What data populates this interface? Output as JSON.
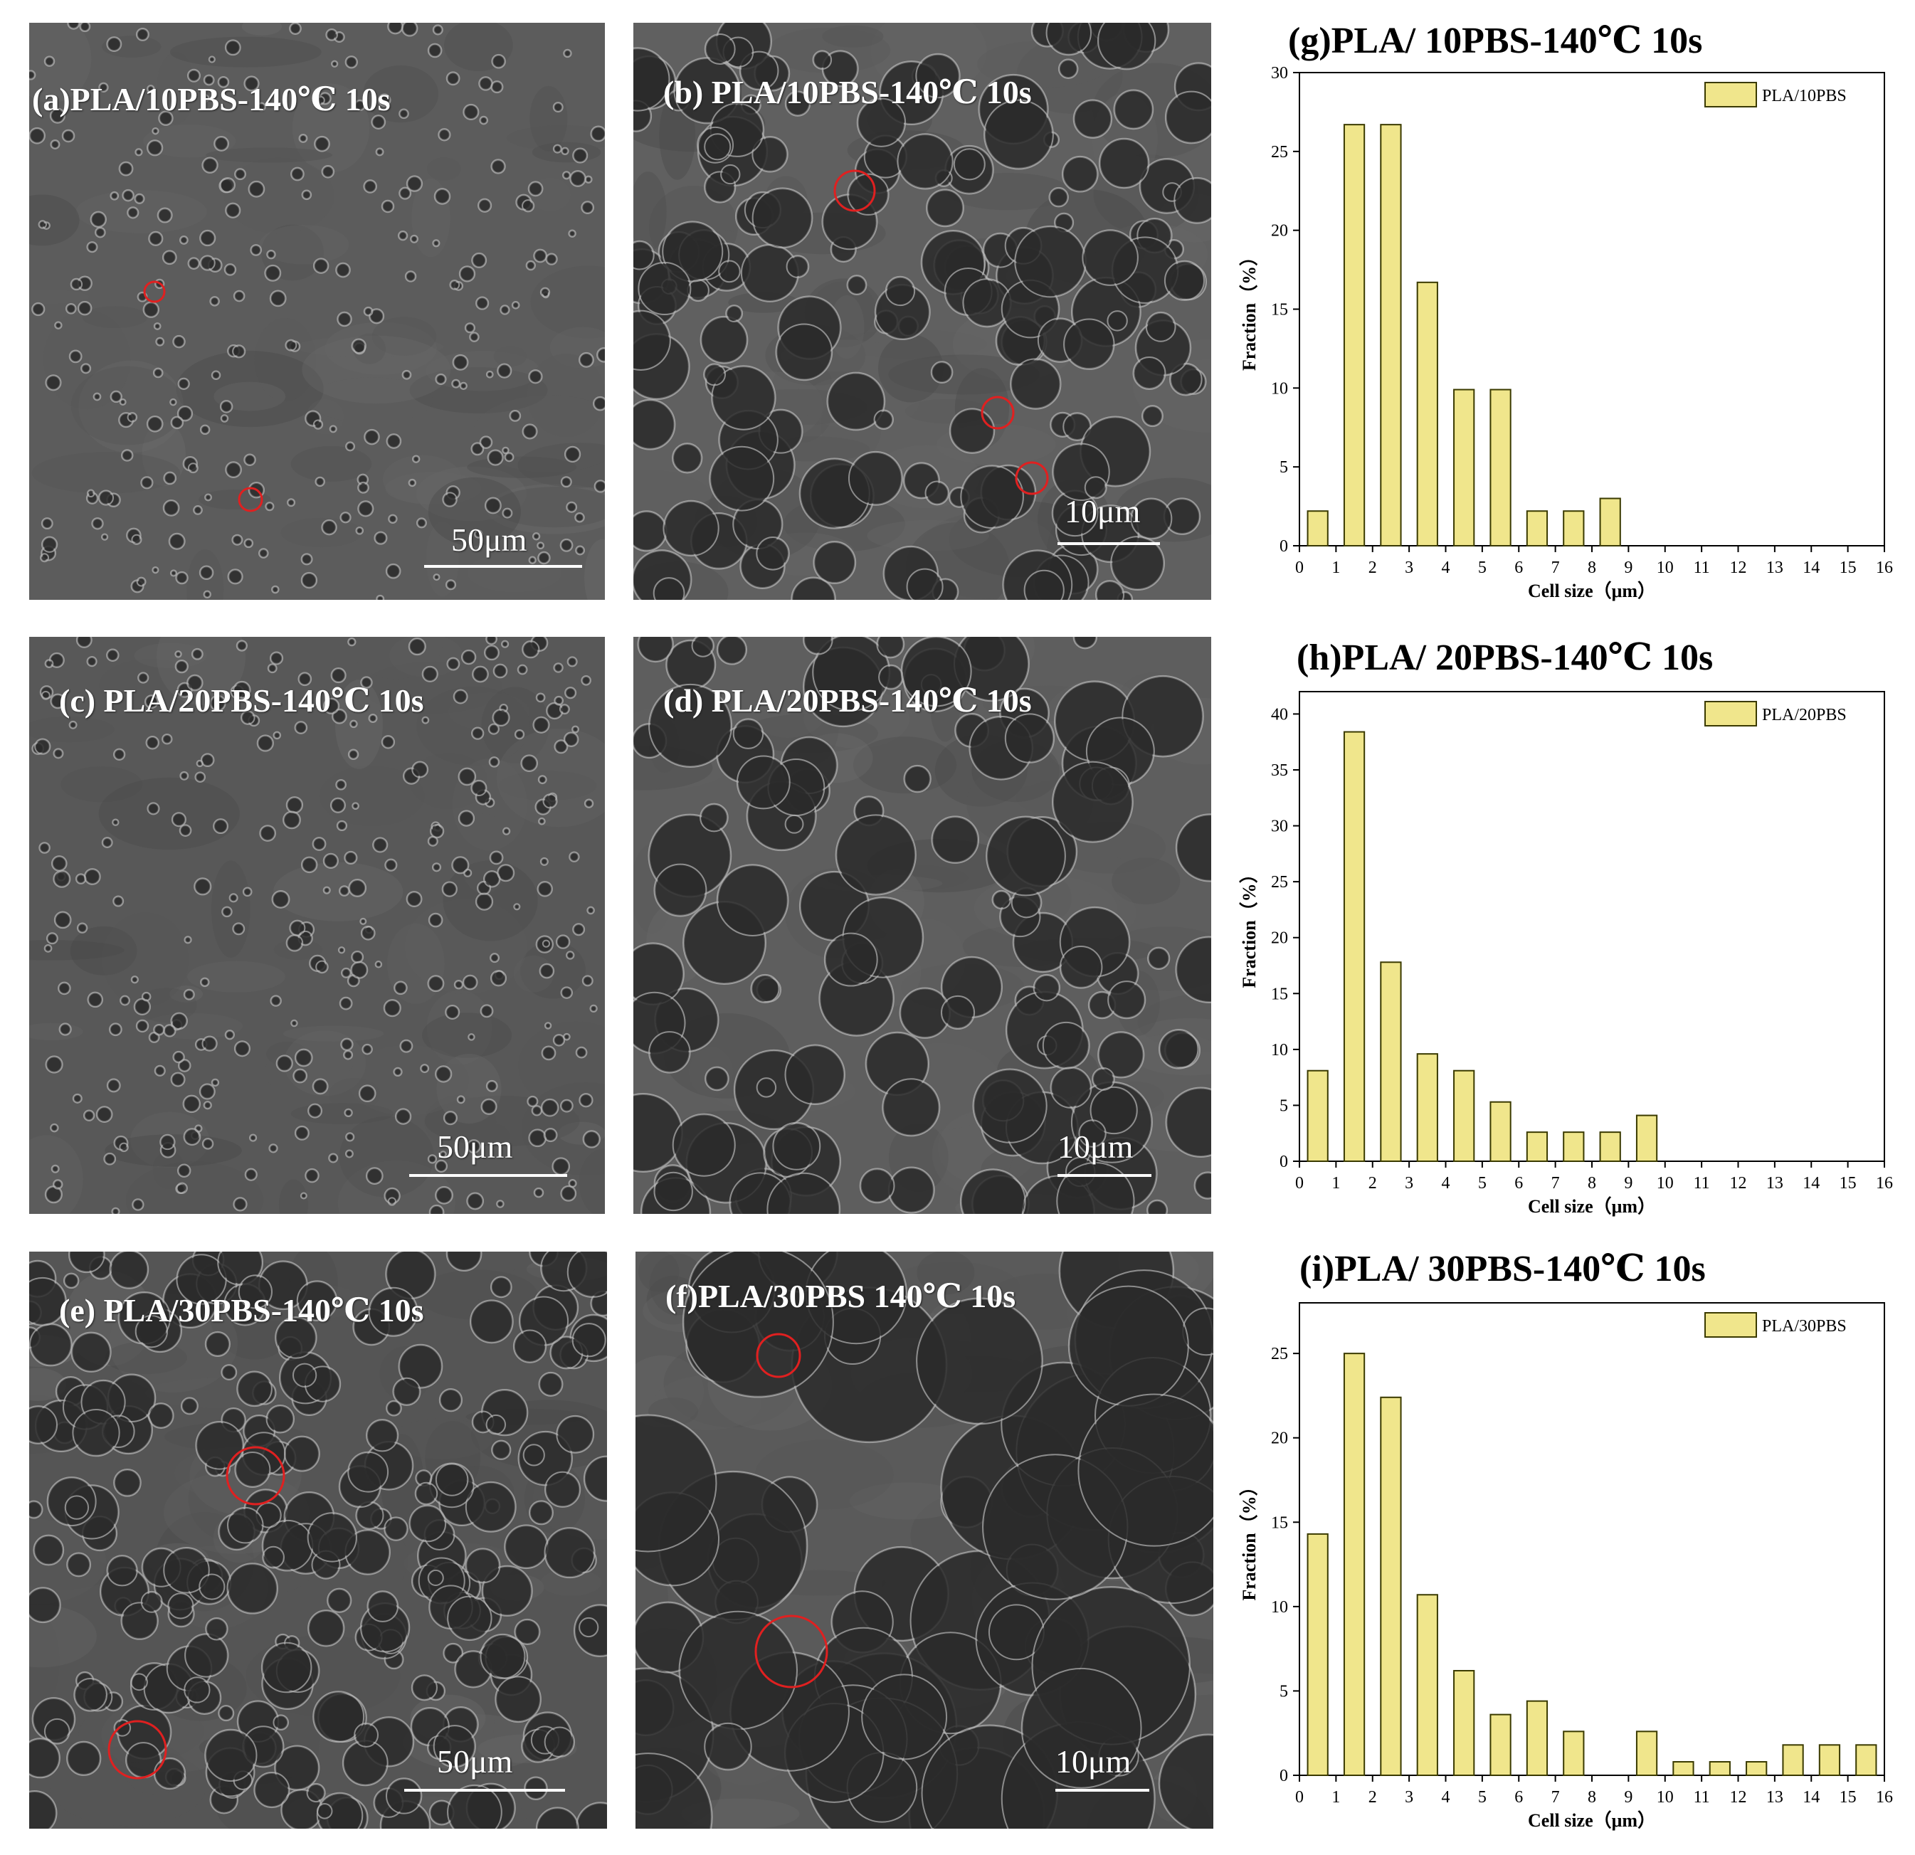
{
  "panels": [
    {
      "id": "a",
      "label": "(a)PLA/10PBS-140℃ 10s",
      "scale": "50μm"
    },
    {
      "id": "b",
      "label": "(b) PLA/10PBS-140℃ 10s",
      "scale": "10μm"
    },
    {
      "id": "c",
      "label": "(c) PLA/20PBS-140℃ 10s",
      "scale": "50μm"
    },
    {
      "id": "d",
      "label": "(d) PLA/20PBS-140℃ 10s",
      "scale": "10μm"
    },
    {
      "id": "e",
      "label": "(e) PLA/30PBS-140℃ 10s",
      "scale": "50μm"
    },
    {
      "id": "f",
      "label": "(f)PLA/30PBS 140℃ 10s",
      "scale": "10μm"
    }
  ],
  "colors": {
    "bar_fill": "#f0e68c",
    "bar_stroke": "#3a3a00",
    "circle": "#e02020"
  },
  "chart_data": [
    {
      "type": "bar",
      "title": "(g)PLA/ 10PBS-140℃ 10s",
      "xlabel": "Cell size（μm）",
      "ylabel": "Fraction（%）",
      "xlim": [
        0,
        16
      ],
      "ylim": [
        0,
        30
      ],
      "xticks": [
        "0",
        "1",
        "2",
        "3",
        "4",
        "5",
        "6",
        "7",
        "8",
        "9",
        "10",
        "11",
        "12",
        "13",
        "14",
        "15",
        "16"
      ],
      "yticks": [
        "0",
        "5",
        "10",
        "15",
        "20",
        "25",
        "30"
      ],
      "legend_position": "top-right",
      "series": [
        {
          "name": "PLA/10PBS",
          "x": [
            0.5,
            1.5,
            2.5,
            3.5,
            4.5,
            5.5,
            6.5,
            7.5,
            8.5
          ],
          "values": [
            2.2,
            26.7,
            26.7,
            16.7,
            9.9,
            9.9,
            2.2,
            2.2,
            3.0
          ]
        }
      ]
    },
    {
      "type": "bar",
      "title": "(h)PLA/ 20PBS-140℃ 10s",
      "xlabel": "Cell size（μm）",
      "ylabel": "Fraction（%）",
      "xlim": [
        0,
        16
      ],
      "ylim": [
        0,
        42
      ],
      "xticks": [
        "0",
        "1",
        "2",
        "3",
        "4",
        "5",
        "6",
        "7",
        "8",
        "9",
        "10",
        "11",
        "12",
        "13",
        "14",
        "15",
        "16"
      ],
      "yticks": [
        "0",
        "5",
        "10",
        "15",
        "20",
        "25",
        "30",
        "35",
        "40"
      ],
      "legend_position": "top-right",
      "series": [
        {
          "name": "PLA/20PBS",
          "x": [
            0.5,
            1.5,
            2.5,
            3.5,
            4.5,
            5.5,
            6.5,
            7.5,
            8.5,
            9.5
          ],
          "values": [
            8.1,
            38.4,
            17.8,
            9.6,
            8.1,
            5.3,
            2.6,
            2.6,
            2.6,
            4.1
          ]
        }
      ]
    },
    {
      "type": "bar",
      "title": "(i)PLA/ 30PBS-140℃ 10s",
      "xlabel": "Cell size（μm）",
      "ylabel": "Fraction（%）",
      "xlim": [
        0,
        16
      ],
      "ylim": [
        0,
        28
      ],
      "xticks": [
        "0",
        "1",
        "2",
        "3",
        "4",
        "5",
        "6",
        "7",
        "8",
        "9",
        "10",
        "11",
        "12",
        "13",
        "14",
        "15",
        "16"
      ],
      "yticks": [
        "0",
        "5",
        "10",
        "15",
        "20",
        "25"
      ],
      "legend_position": "top-right",
      "series": [
        {
          "name": "PLA/30PBS",
          "x": [
            0.5,
            1.5,
            2.5,
            3.5,
            4.5,
            5.5,
            6.5,
            7.5,
            9.5,
            10.5,
            11.5,
            12.5,
            13.5,
            14.5,
            15.5
          ],
          "values": [
            14.3,
            25.0,
            22.4,
            10.7,
            6.2,
            3.6,
            4.4,
            2.6,
            2.6,
            0.8,
            0.8,
            0.8,
            1.8,
            1.8,
            1.8
          ]
        }
      ]
    }
  ]
}
